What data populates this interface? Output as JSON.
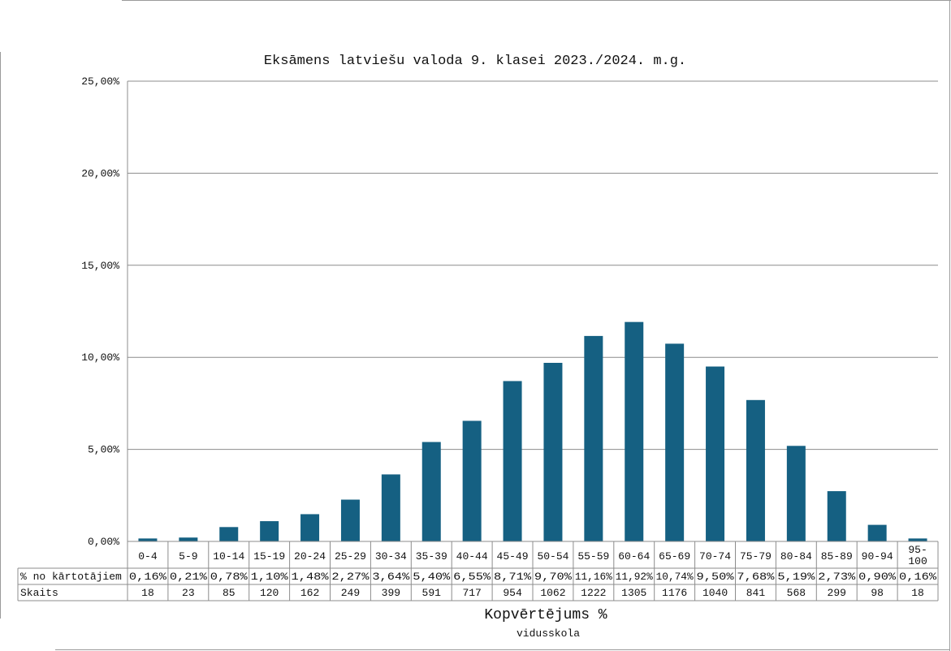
{
  "chart_data": {
    "type": "bar",
    "title": "Eksāmens latviešu valoda 9. klasei 2023./2024. m.g.",
    "xlabel": "Kopvērtējums %",
    "subtitle": "vidusskola",
    "ylabel": "",
    "ylim": [
      0,
      25
    ],
    "y_ticks": [
      "0,00%",
      "5,00%",
      "10,00%",
      "15,00%",
      "20,00%",
      "25,00%"
    ],
    "grid": true,
    "categories": [
      "0-4",
      "5-9",
      "10-14",
      "15-19",
      "20-24",
      "25-29",
      "30-34",
      "35-39",
      "40-44",
      "45-49",
      "50-54",
      "55-59",
      "60-64",
      "65-69",
      "70-74",
      "75-79",
      "80-84",
      "85-89",
      "90-94",
      "95-100"
    ],
    "values": [
      0.16,
      0.21,
      0.78,
      1.1,
      1.48,
      2.27,
      3.64,
      5.4,
      6.55,
      8.71,
      9.7,
      11.16,
      11.92,
      10.74,
      9.5,
      7.68,
      5.19,
      2.73,
      0.9,
      0.16
    ],
    "bar_color": "#156082",
    "table": {
      "row_labels": [
        "% no kārtotājiem",
        "Skaits"
      ],
      "percent_labels": [
        "0,16%",
        "0,21%",
        "0,78%",
        "1,10%",
        "1,48%",
        "2,27%",
        "3,64%",
        "5,40%",
        "6,55%",
        "8,71%",
        "9,70%",
        "11,16%",
        "11,92%",
        "10,74%",
        "9,50%",
        "7,68%",
        "5,19%",
        "2,73%",
        "0,90%",
        "0,16%"
      ],
      "counts": [
        "18",
        "23",
        "85",
        "120",
        "162",
        "249",
        "399",
        "591",
        "717",
        "954",
        "1062",
        "1222",
        "1305",
        "1176",
        "1040",
        "841",
        "568",
        "299",
        "98",
        "18"
      ]
    }
  }
}
